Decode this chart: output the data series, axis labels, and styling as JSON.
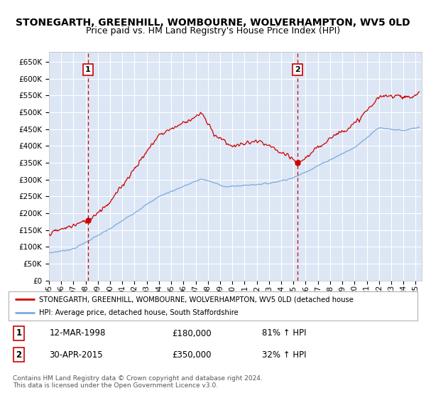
{
  "title": "STONEGARTH, GREENHILL, WOMBOURNE, WOLVERHAMPTON, WV5 0LD",
  "subtitle": "Price paid vs. HM Land Registry's House Price Index (HPI)",
  "ylim": [
    0,
    680000
  ],
  "yticks": [
    0,
    50000,
    100000,
    150000,
    200000,
    250000,
    300000,
    350000,
    400000,
    450000,
    500000,
    550000,
    600000,
    650000
  ],
  "xlim_start": 1995.0,
  "xlim_end": 2025.5,
  "background_color": "#dce6f5",
  "grid_color": "#ffffff",
  "red_line_color": "#cc0000",
  "blue_line_color": "#7aabdb",
  "title_fontsize": 10,
  "subtitle_fontsize": 9,
  "sale1_x": 1998.19,
  "sale1_y": 180000,
  "sale2_x": 2015.33,
  "sale2_y": 350000,
  "legend_red": "STONEGARTH, GREENHILL, WOMBOURNE, WOLVERHAMPTON, WV5 0LD (detached house",
  "legend_blue": "HPI: Average price, detached house, South Staffordshire",
  "annot1_date": "12-MAR-1998",
  "annot1_price": "£180,000",
  "annot1_hpi": "81% ↑ HPI",
  "annot2_date": "30-APR-2015",
  "annot2_price": "£350,000",
  "annot2_hpi": "32% ↑ HPI",
  "footer": "Contains HM Land Registry data © Crown copyright and database right 2024.\nThis data is licensed under the Open Government Licence v3.0.",
  "xtick_years": [
    1995,
    1996,
    1997,
    1998,
    1999,
    2000,
    2001,
    2002,
    2003,
    2004,
    2005,
    2006,
    2007,
    2008,
    2009,
    2010,
    2011,
    2012,
    2013,
    2014,
    2015,
    2016,
    2017,
    2018,
    2019,
    2020,
    2021,
    2022,
    2023,
    2024,
    2025
  ]
}
